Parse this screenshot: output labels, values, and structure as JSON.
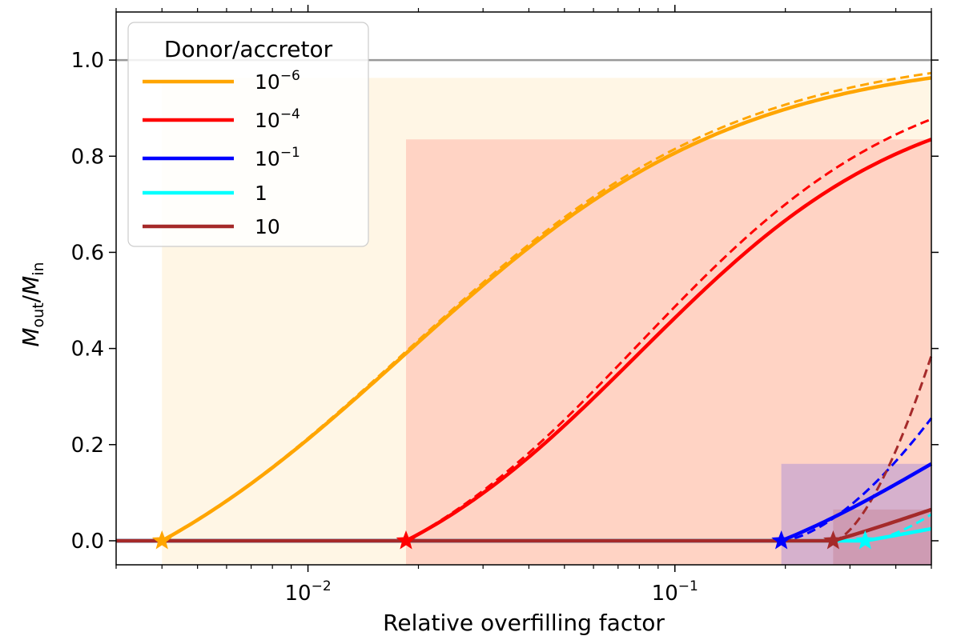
{
  "chart_data": {
    "type": "line",
    "title": "",
    "xlabel": "Relative overfilling factor",
    "ylabel_main": "M",
    "ylabel_sub_out": "out",
    "ylabel_slash": "/",
    "ylabel_sub_in": "in",
    "xscale": "log",
    "xlim": [
      0.003,
      0.5
    ],
    "ylim": [
      -0.05,
      1.1
    ],
    "yticks": [
      0.0,
      0.2,
      0.4,
      0.6,
      0.8,
      1.0
    ],
    "ytick_labels": [
      "0.0",
      "0.2",
      "0.4",
      "0.6",
      "0.8",
      "1.0"
    ],
    "xtick_major": [
      0.01,
      0.1
    ],
    "xtick_labels": [
      {
        "base": "10",
        "exp": "−2"
      },
      {
        "base": "10",
        "exp": "−1"
      }
    ],
    "reference_line": {
      "y": 1.0,
      "color": "#999999"
    },
    "legend": {
      "title": "Donor/accretor",
      "placement": "top-left"
    },
    "series": [
      {
        "name_base": "10",
        "name_exp": "−6",
        "color": "#FFA500",
        "x_start": 0.004,
        "plateau": 0.963,
        "x_half": 0.0185,
        "steep": 2.2,
        "dashed_plateau": 0.973,
        "band_alpha": 0.1
      },
      {
        "name_base": "10",
        "name_exp": "−4",
        "color": "#FF0000",
        "x_start": 0.0185,
        "plateau": 0.835,
        "x_half": 0.08,
        "steep": 2.7,
        "dashed_plateau": 0.877,
        "band_alpha": 0.14
      },
      {
        "name_base": "10",
        "name_exp": "−1",
        "color": "#0000FF",
        "x_start": 0.195,
        "plateau": 0.16,
        "x_half": 0.5,
        "steep": 3.0,
        "dashed_end": 0.255,
        "band_alpha": 0.16
      },
      {
        "name_base": "1",
        "name_exp": "",
        "color": "#00FFFF",
        "x_start": 0.33,
        "plateau": 0.025,
        "x_half": 0.5,
        "steep": 3.0,
        "dashed_end": 0.055,
        "band_alpha": 0.0
      },
      {
        "name_base": "10",
        "name_exp": "",
        "color": "#A52A2A",
        "x_start": 0.27,
        "plateau": 0.065,
        "x_half": 0.5,
        "steep": 3.0,
        "dashed_end": 0.385,
        "band_alpha": 0.16
      }
    ]
  }
}
